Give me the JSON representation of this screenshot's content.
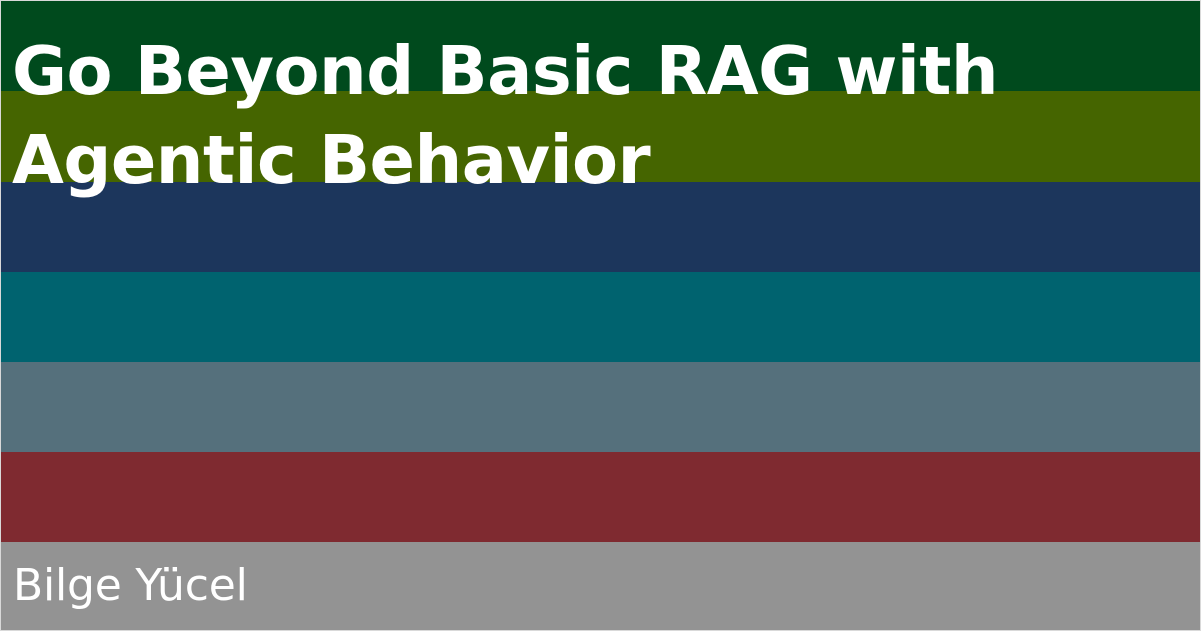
{
  "title": "Go Beyond Basic RAG with\nAgentic Behavior",
  "author": "Bilge Yücel",
  "colors": {
    "band_1": "#004a1d",
    "band_2": "#456500",
    "band_3": "#1c365c",
    "band_4": "#00636f",
    "band_5": "#55707c",
    "band_6": "#7f2a30",
    "band_7": "#939393",
    "text": "#ffffff"
  }
}
